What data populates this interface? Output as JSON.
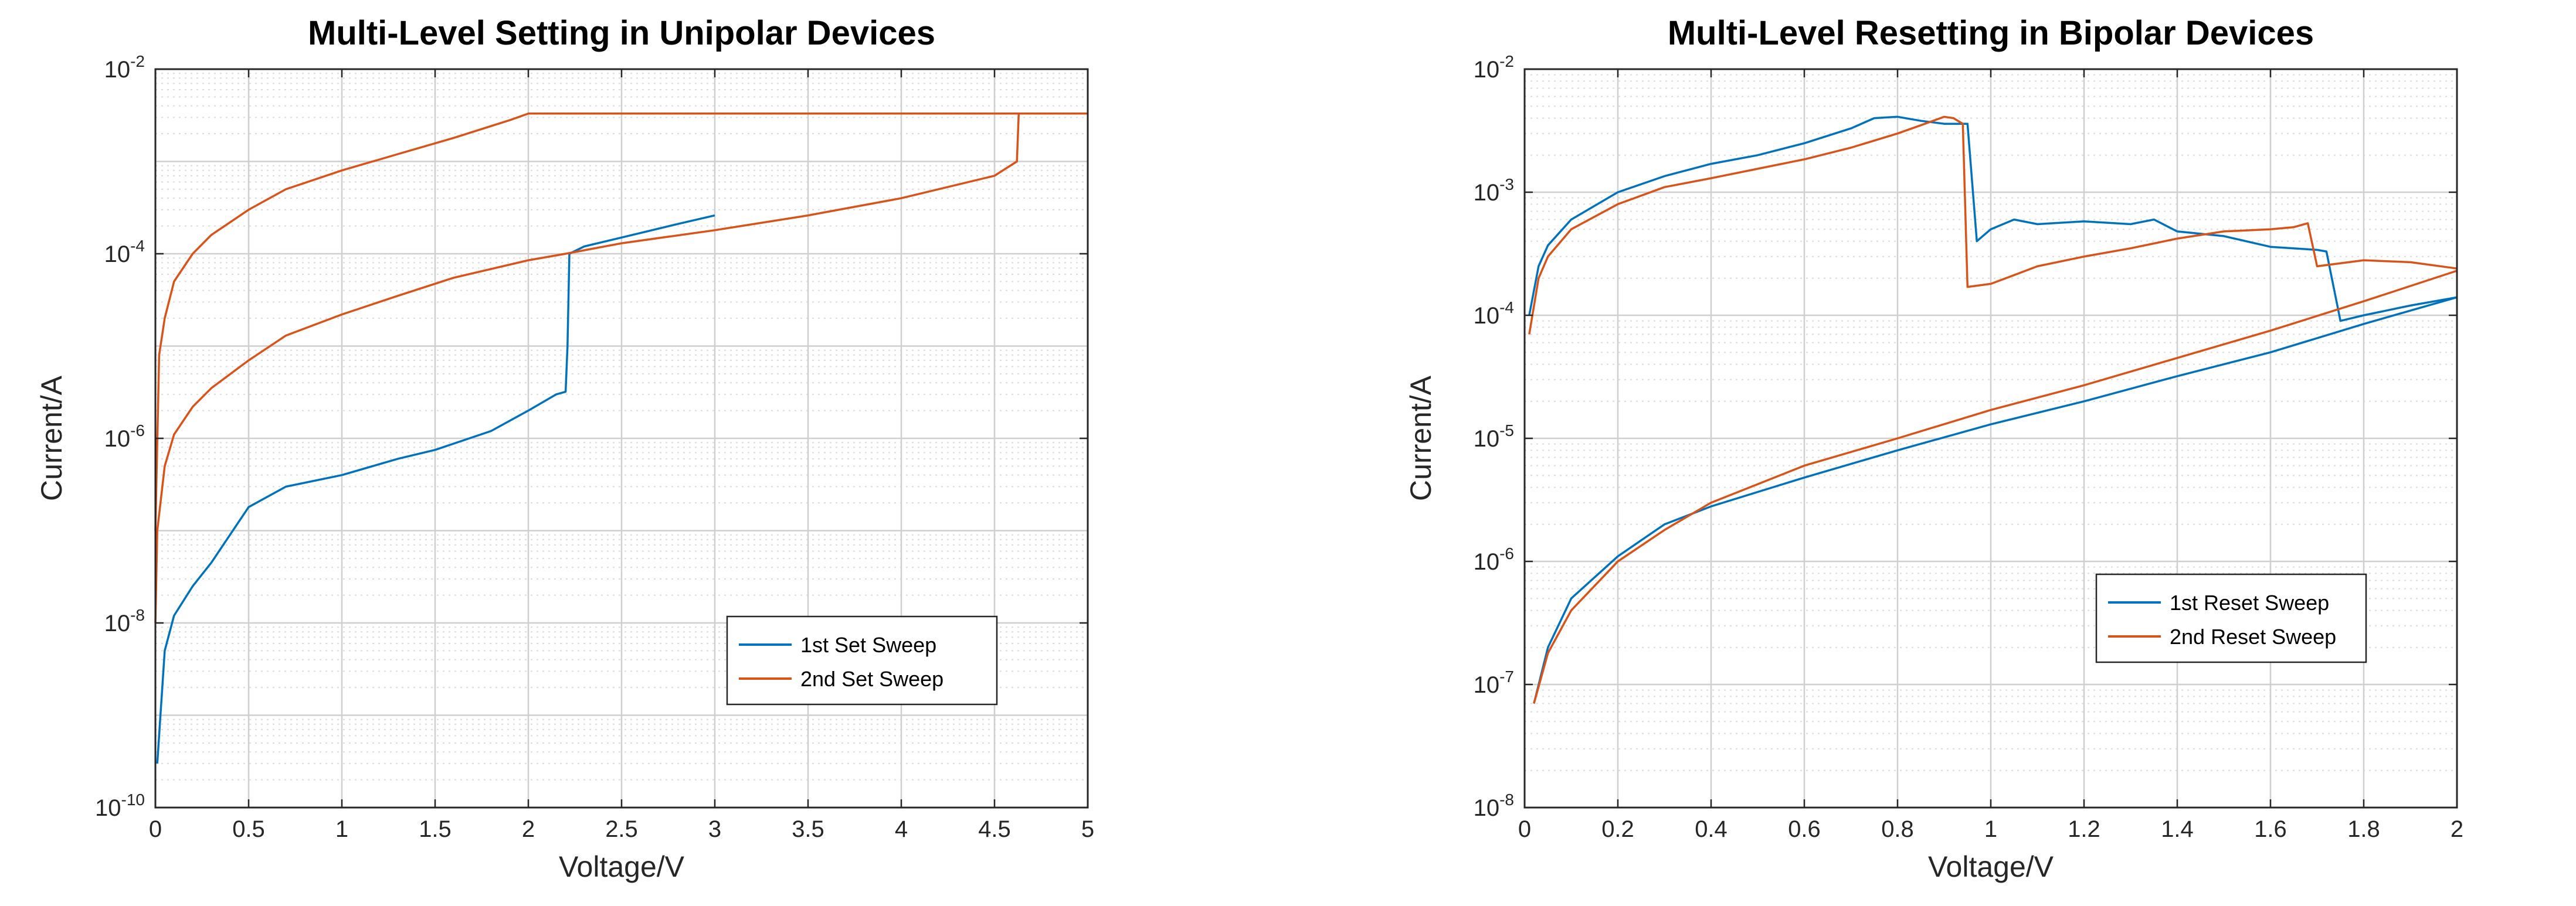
{
  "chart_data": [
    {
      "type": "line",
      "title": "Multi-Level Setting in Unipolar Devices",
      "xlabel": "Voltage/V",
      "ylabel": "Current/A",
      "xlim": [
        0,
        5
      ],
      "ylim": [
        1e-10,
        0.01
      ],
      "yscale": "log",
      "grid": "major and minor",
      "legend_position": "lower-right",
      "xticks": [
        "0",
        "0.5",
        "1",
        "1.5",
        "2",
        "2.5",
        "3",
        "3.5",
        "4",
        "4.5",
        "5"
      ],
      "yticks": [
        {
          "base": "10",
          "exp": "-10"
        },
        {
          "base": "10",
          "exp": "-8"
        },
        {
          "base": "10",
          "exp": "-6"
        },
        {
          "base": "10",
          "exp": "-4"
        },
        {
          "base": "10",
          "exp": "-2"
        }
      ],
      "series": [
        {
          "name": "1st Set Sweep",
          "color": "#0072BD",
          "x": [
            0.01,
            0.05,
            0.1,
            0.2,
            0.3,
            0.5,
            0.7,
            1.0,
            1.3,
            1.5,
            1.8,
            2.0,
            2.15,
            2.2,
            2.21,
            2.22,
            2.3,
            2.5,
            2.8,
            3.0
          ],
          "y": [
            3e-10,
            5e-09,
            1.2e-08,
            2.5e-08,
            4.5e-08,
            1.8e-07,
            3e-07,
            4e-07,
            6e-07,
            7.5e-07,
            1.2e-06,
            2e-06,
            3e-06,
            3.2e-06,
            1e-05,
            0.0001,
            0.00012,
            0.00015,
            0.00021,
            0.00026
          ]
        },
        {
          "name": "2nd Set Sweep",
          "color": "#D95319",
          "x": [
            0.0,
            0.01,
            0.05,
            0.1,
            0.2,
            0.3,
            0.5,
            0.7,
            1.0,
            1.3,
            1.6,
            2.0,
            2.2,
            2.5,
            3.0,
            3.5,
            4.0,
            4.5,
            4.62,
            4.63,
            4.65,
            5.0
          ],
          "y": [
            1e-08,
            1e-07,
            5e-07,
            1.1e-06,
            2.2e-06,
            3.5e-06,
            7e-06,
            1.3e-05,
            2.2e-05,
            3.5e-05,
            5.5e-05,
            8.5e-05,
            0.0001,
            0.00013,
            0.00018,
            0.00026,
            0.0004,
            0.0007,
            0.001,
            0.0033,
            0.0033,
            0.0033
          ],
          "x_branch2": [
            0.0,
            0.02,
            0.05,
            0.1,
            0.2,
            0.3,
            0.5,
            0.7,
            1.0,
            1.3,
            1.6,
            1.9,
            2.0,
            5.0
          ],
          "y_branch2": [
            1e-07,
            8e-06,
            2e-05,
            5e-05,
            0.0001,
            0.00016,
            0.0003,
            0.0005,
            0.0008,
            0.0012,
            0.0018,
            0.0028,
            0.0033,
            0.0033
          ]
        }
      ]
    },
    {
      "type": "line",
      "title": "Multi-Level Resetting in Bipolar Devices",
      "xlabel": "Voltage/V",
      "ylabel": "Current/A",
      "xlim": [
        0,
        2
      ],
      "ylim": [
        1e-08,
        0.01
      ],
      "yscale": "log",
      "grid": "major and minor",
      "legend_position": "lower-right",
      "xticks": [
        "0",
        "0.2",
        "0.4",
        "0.6",
        "0.8",
        "1",
        "1.2",
        "1.4",
        "1.6",
        "1.8",
        "2"
      ],
      "yticks": [
        {
          "base": "10",
          "exp": "-8"
        },
        {
          "base": "10",
          "exp": "-7"
        },
        {
          "base": "10",
          "exp": "-6"
        },
        {
          "base": "10",
          "exp": "-5"
        },
        {
          "base": "10",
          "exp": "-4"
        },
        {
          "base": "10",
          "exp": "-3"
        },
        {
          "base": "10",
          "exp": "-2"
        }
      ],
      "series": [
        {
          "name": "1st Reset Sweep",
          "color": "#0072BD",
          "x": [
            0.01,
            0.03,
            0.05,
            0.1,
            0.2,
            0.3,
            0.4,
            0.5,
            0.6,
            0.7,
            0.75,
            0.8,
            0.85,
            0.9,
            0.92,
            0.95,
            0.97,
            1.0,
            1.05,
            1.1,
            1.2,
            1.3,
            1.35,
            1.4,
            1.5,
            1.6,
            1.7,
            1.72,
            1.75,
            1.8,
            1.9,
            2.0
          ],
          "y": [
            0.0001,
            0.00025,
            0.00037,
            0.0006,
            0.001,
            0.00135,
            0.0017,
            0.002,
            0.0025,
            0.0033,
            0.004,
            0.0041,
            0.0038,
            0.0036,
            0.0036,
            0.0036,
            0.0004,
            0.0005,
            0.0006,
            0.00055,
            0.00058,
            0.00055,
            0.0006,
            0.00048,
            0.00044,
            0.00036,
            0.00034,
            0.00033,
            9e-05,
            0.0001,
            0.00012,
            0.00014
          ],
          "x_branch2": [
            0.02,
            0.05,
            0.1,
            0.2,
            0.3,
            0.4,
            0.6,
            0.8,
            1.0,
            1.2,
            1.4,
            1.6,
            1.8,
            2.0
          ],
          "y_branch2": [
            7e-08,
            2e-07,
            5e-07,
            1.1e-06,
            2e-06,
            2.8e-06,
            4.8e-06,
            8e-06,
            1.3e-05,
            2e-05,
            3.2e-05,
            5e-05,
            8.5e-05,
            0.00014
          ]
        },
        {
          "name": "2nd Reset Sweep",
          "color": "#D95319",
          "x": [
            0.01,
            0.03,
            0.05,
            0.1,
            0.2,
            0.3,
            0.4,
            0.5,
            0.6,
            0.7,
            0.8,
            0.85,
            0.9,
            0.92,
            0.94,
            0.95,
            1.0,
            1.1,
            1.2,
            1.3,
            1.4,
            1.5,
            1.6,
            1.65,
            1.68,
            1.7,
            1.8,
            1.9,
            2.0
          ],
          "y": [
            7e-05,
            0.0002,
            0.0003,
            0.0005,
            0.0008,
            0.0011,
            0.0013,
            0.00155,
            0.00185,
            0.0023,
            0.003,
            0.0035,
            0.0041,
            0.004,
            0.0036,
            0.00017,
            0.00018,
            0.00025,
            0.0003,
            0.00035,
            0.00042,
            0.00048,
            0.0005,
            0.00052,
            0.00056,
            0.00025,
            0.00028,
            0.00027,
            0.00024
          ],
          "x_branch2": [
            0.02,
            0.05,
            0.1,
            0.2,
            0.3,
            0.4,
            0.6,
            0.8,
            1.0,
            1.2,
            1.4,
            1.6,
            1.8,
            2.0
          ],
          "y_branch2": [
            7e-08,
            1.8e-07,
            4e-07,
            1e-06,
            1.8e-06,
            3e-06,
            6e-06,
            1e-05,
            1.7e-05,
            2.7e-05,
            4.5e-05,
            7.5e-05,
            0.00013,
            0.00023
          ]
        }
      ]
    }
  ]
}
